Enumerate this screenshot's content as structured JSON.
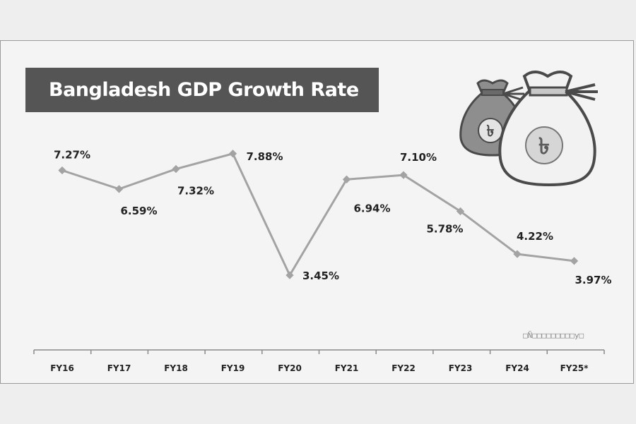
{
  "chart_data": {
    "type": "line",
    "title": "Bangladesh GDP Growth Rate",
    "xlabel": "",
    "ylabel": "",
    "categories": [
      "FY16",
      "FY17",
      "FY18",
      "FY19",
      "FY20",
      "FY21",
      "FY22",
      "FY23",
      "FY24",
      "FY25*"
    ],
    "series": [
      {
        "name": "GDP Growth Rate",
        "values": [
          7.27,
          6.59,
          7.32,
          7.88,
          3.45,
          6.94,
          7.1,
          5.78,
          4.22,
          3.97
        ],
        "labels": [
          "7.27%",
          "6.59%",
          "7.32%",
          "7.88%",
          "3.45%",
          "6.94%",
          "7.10%",
          "5.78%",
          "4.22%",
          "3.97%"
        ]
      }
    ],
    "grid": false,
    "legend": "none"
  },
  "watermark_text": "□Ñ□□□□□□□□□y□",
  "colors": {
    "line": "#a3a3a3",
    "marker": "#a3a3a3",
    "banner": "#555555",
    "text": "#222222"
  },
  "icons": [
    "money-bag-icon",
    "taka-sign-icon"
  ]
}
